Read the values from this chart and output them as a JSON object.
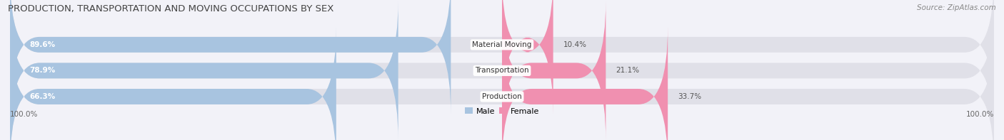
{
  "title": "PRODUCTION, TRANSPORTATION AND MOVING OCCUPATIONS BY SEX",
  "source": "Source: ZipAtlas.com",
  "categories": [
    "Material Moving",
    "Transportation",
    "Production"
  ],
  "male_pct": [
    89.6,
    78.9,
    66.3
  ],
  "female_pct": [
    10.4,
    21.1,
    33.7
  ],
  "male_color": "#a8c4e0",
  "female_color": "#f090b0",
  "bar_bg_color": "#e0e0e8",
  "male_label": "Male",
  "female_label": "Female",
  "left_axis_label": "100.0%",
  "right_axis_label": "100.0%",
  "title_fontsize": 9.5,
  "source_fontsize": 7.5,
  "bar_label_fontsize": 7.5,
  "cat_label_fontsize": 7.5,
  "axis_label_fontsize": 7.5,
  "legend_fontsize": 8,
  "bar_height": 0.6,
  "background_color": "#f2f2f8"
}
